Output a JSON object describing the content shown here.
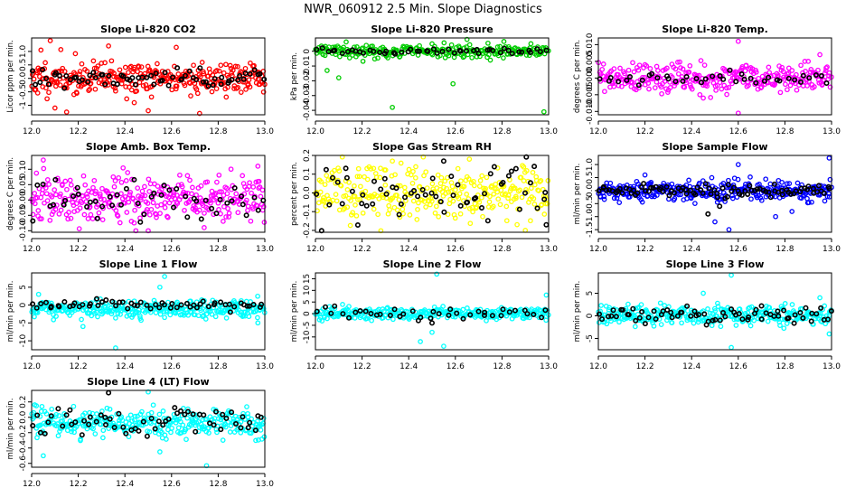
{
  "figure_title": "NWR_060912  2.5 Min. Slope Diagnostics",
  "colors": {
    "axis": "#000000",
    "background": "#ffffff",
    "flagged": "#000000"
  },
  "chart_data": [
    {
      "type": "scatter",
      "title": "Slope Li-820 CO2",
      "ylabel": "Licor ppm per min.",
      "xlim": [
        12.0,
        13.0
      ],
      "ylim": [
        -1.35,
        1.5
      ],
      "xticks": [
        "12.0",
        "12.2",
        "12.4",
        "12.6",
        "12.8",
        "13.0"
      ],
      "yticks": [
        {
          "v": -1,
          "t": "-1"
        },
        {
          "v": -0.5,
          "t": "-0.5"
        },
        {
          "v": 0,
          "t": "0.0"
        },
        {
          "v": 0.5,
          "t": "0.5"
        },
        {
          "v": 1,
          "t": "1.0"
        }
      ],
      "series": [
        {
          "name": "all",
          "color": "#ff0000",
          "count": 320,
          "seed": 11,
          "center": 0.0,
          "spread": 0.3,
          "outliers": [
            [
              12.08,
              1.4
            ],
            [
              12.1,
              -1.1
            ],
            [
              12.15,
              -1.25
            ],
            [
              12.33,
              1.2
            ],
            [
              12.5,
              -1.2
            ],
            [
              12.62,
              1.15
            ],
            [
              12.72,
              -1.3
            ],
            [
              12.04,
              1.05
            ],
            [
              12.44,
              -0.9
            ]
          ]
        },
        {
          "name": "flagged",
          "color": "#000000",
          "count": 70,
          "seed": 12,
          "center": 0.0,
          "spread": 0.2,
          "outliers": []
        }
      ]
    },
    {
      "type": "scatter",
      "title": "Slope Li-820 Pressure",
      "ylabel": "kPa per min.",
      "xlim": [
        12.0,
        13.0
      ],
      "ylim": [
        -0.043,
        0.009
      ],
      "xticks": [
        "12.0",
        "12.2",
        "12.4",
        "12.6",
        "12.8",
        "13.0"
      ],
      "yticks": [
        {
          "v": -0.04,
          "t": "-0.04"
        },
        {
          "v": -0.03,
          "t": "-0.03"
        },
        {
          "v": -0.02,
          "t": "-0.02"
        },
        {
          "v": -0.01,
          "t": "-0.01"
        },
        {
          "v": 0,
          "t": "0"
        }
      ],
      "series": [
        {
          "name": "all",
          "color": "#00cc00",
          "count": 260,
          "seed": 21,
          "center": 0.0,
          "spread": 0.0022,
          "outliers": [
            [
              12.05,
              -0.013
            ],
            [
              12.1,
              -0.018
            ],
            [
              12.33,
              -0.038
            ],
            [
              12.59,
              -0.022
            ],
            [
              12.65,
              0.008
            ],
            [
              12.98,
              -0.041
            ],
            [
              12.75,
              -0.006
            ],
            [
              12.5,
              0.005
            ]
          ]
        },
        {
          "name": "flagged",
          "color": "#000000",
          "count": 50,
          "seed": 22,
          "center": 0.0,
          "spread": 0.001,
          "outliers": []
        }
      ]
    },
    {
      "type": "scatter",
      "title": "Slope Li-820 Temp.",
      "ylabel": "degrees C per min.",
      "xlim": [
        12.0,
        13.0
      ],
      "ylim": [
        -0.011,
        0.012
      ],
      "xticks": [
        "12.0",
        "12.2",
        "12.4",
        "12.6",
        "12.8",
        "13.0"
      ],
      "yticks": [
        {
          "v": -0.01,
          "t": "-0.010"
        },
        {
          "v": -0.005,
          "t": "-0.005"
        },
        {
          "v": 0,
          "t": "0.000"
        },
        {
          "v": 0.005,
          "t": "0.005"
        },
        {
          "v": 0.01,
          "t": "0.010"
        }
      ],
      "series": [
        {
          "name": "all",
          "color": "#ff00ff",
          "count": 300,
          "seed": 31,
          "center": 0.0,
          "spread": 0.0022,
          "outliers": [
            [
              12.6,
              0.011
            ],
            [
              12.6,
              -0.0105
            ],
            [
              12.45,
              -0.006
            ],
            [
              12.9,
              0.005
            ],
            [
              12.2,
              0.004
            ],
            [
              12.95,
              0.007
            ]
          ]
        },
        {
          "name": "flagged",
          "color": "#000000",
          "count": 40,
          "seed": 32,
          "center": 0.0,
          "spread": 0.0012,
          "outliers": []
        }
      ]
    },
    {
      "type": "scatter",
      "title": "Slope Amb. Box Temp.",
      "ylabel": "degrees C per min.",
      "xlim": [
        12.0,
        13.0
      ],
      "ylim": [
        -0.105,
        0.145
      ],
      "xticks": [
        "12.0",
        "12.2",
        "12.4",
        "12.6",
        "12.8",
        "13.0"
      ],
      "yticks": [
        {
          "v": -0.1,
          "t": "-0.10"
        },
        {
          "v": -0.05,
          "t": "-0.05"
        },
        {
          "v": 0,
          "t": "0.00"
        },
        {
          "v": 0.05,
          "t": "0.05"
        },
        {
          "v": 0.1,
          "t": "0.10"
        }
      ],
      "series": [
        {
          "name": "all",
          "color": "#ff00ff",
          "count": 320,
          "seed": 41,
          "center": 0.0,
          "spread": 0.04,
          "outliers": [
            [
              12.05,
              0.13
            ],
            [
              12.5,
              -0.1
            ],
            [
              12.74,
              -0.09
            ],
            [
              12.97,
              0.11
            ]
          ]
        },
        {
          "name": "flagged",
          "color": "#000000",
          "count": 50,
          "seed": 42,
          "center": 0.0,
          "spread": 0.035,
          "outliers": []
        }
      ]
    },
    {
      "type": "scatter",
      "title": "Slope Gas Stream RH",
      "ylabel": "percent per min.",
      "xlim": [
        12.0,
        13.0
      ],
      "ylim": [
        -0.21,
        0.2
      ],
      "xticks": [
        "12.0",
        "12.2",
        "12.4",
        "12.6",
        "12.8",
        "13.0"
      ],
      "yticks": [
        {
          "v": -0.2,
          "t": "-0.2"
        },
        {
          "v": -0.1,
          "t": "-0.1"
        },
        {
          "v": 0,
          "t": "0.0"
        },
        {
          "v": 0.1,
          "t": "0.1"
        },
        {
          "v": 0.2,
          "t": "0.2"
        }
      ],
      "series": [
        {
          "name": "all",
          "color": "#ffff00",
          "count": 300,
          "seed": 51,
          "center": 0.0,
          "spread": 0.07,
          "outliers": [
            [
              12.66,
              0.18
            ],
            [
              12.9,
              -0.2
            ],
            [
              12.33,
              0.17
            ]
          ]
        },
        {
          "name": "flagged",
          "color": "#000000",
          "count": 60,
          "seed": 52,
          "center": 0.0,
          "spread": 0.08,
          "outliers": [
            [
              12.55,
              0.17
            ],
            [
              12.99,
              -0.17
            ]
          ]
        }
      ]
    },
    {
      "type": "scatter",
      "title": "Slope Sample Flow",
      "ylabel": "ml/min per min.",
      "xlim": [
        12.0,
        13.0
      ],
      "ylim": [
        -1.6,
        1.35
      ],
      "xticks": [
        "12.0",
        "12.2",
        "12.4",
        "12.6",
        "12.8",
        "13.0"
      ],
      "yticks": [
        {
          "v": -1.5,
          "t": "-1.5"
        },
        {
          "v": -1,
          "t": "-1.0"
        },
        {
          "v": -0.5,
          "t": "-0.5"
        },
        {
          "v": 0,
          "t": "0.0"
        },
        {
          "v": 0.5,
          "t": "0.5"
        },
        {
          "v": 1,
          "t": "1.0"
        }
      ],
      "series": [
        {
          "name": "all",
          "color": "#0000ff",
          "count": 320,
          "seed": 61,
          "center": 0.0,
          "spread": 0.2,
          "outliers": [
            [
              12.56,
              -1.5
            ],
            [
              12.6,
              1.0
            ],
            [
              12.99,
              1.25
            ],
            [
              12.76,
              -1.0
            ],
            [
              12.5,
              -1.2
            ],
            [
              12.2,
              0.6
            ]
          ]
        },
        {
          "name": "flagged",
          "color": "#000000",
          "count": 90,
          "seed": 62,
          "center": 0.0,
          "spread": 0.12,
          "outliers": [
            [
              12.47,
              -0.9
            ],
            [
              12.52,
              -0.6
            ]
          ]
        }
      ]
    },
    {
      "type": "scatter",
      "title": "Slope Line 1 Flow",
      "ylabel": "ml/min per min.",
      "xlim": [
        12.0,
        13.0
      ],
      "ylim": [
        -12.5,
        9.0
      ],
      "xticks": [
        "12.0",
        "12.2",
        "12.4",
        "12.6",
        "12.8",
        "13.0"
      ],
      "yticks": [
        {
          "v": -10,
          "t": "-10"
        },
        {
          "v": -5,
          "t": "-5"
        },
        {
          "v": 0,
          "t": "0"
        },
        {
          "v": 5,
          "t": "5"
        }
      ],
      "series": [
        {
          "name": "all",
          "color": "#00ffff",
          "count": 320,
          "seed": 71,
          "center": -1.0,
          "spread": 1.2,
          "outliers": [
            [
              12.36,
              -12
            ],
            [
              12.57,
              8
            ],
            [
              12.03,
              3
            ],
            [
              12.55,
              5
            ],
            [
              12.97,
              -5
            ],
            [
              12.22,
              -6
            ]
          ]
        },
        {
          "name": "flagged",
          "color": "#000000",
          "count": 60,
          "seed": 72,
          "center": 0.0,
          "spread": 0.6,
          "outliers": []
        }
      ]
    },
    {
      "type": "scatter",
      "title": "Slope Line 2 Flow",
      "ylabel": "ml/min per min.",
      "xlim": [
        12.0,
        13.0
      ],
      "ylim": [
        -15.5,
        17.5
      ],
      "xticks": [
        "12.0",
        "12.2",
        "12.4",
        "12.6",
        "12.8",
        "13.0"
      ],
      "yticks": [
        {
          "v": -10,
          "t": "-10"
        },
        {
          "v": -5,
          "t": "-5"
        },
        {
          "v": 0,
          "t": "0"
        },
        {
          "v": 5,
          "t": "5"
        },
        {
          "v": 10,
          "t": "10"
        },
        {
          "v": 15,
          "t": "15"
        }
      ],
      "series": [
        {
          "name": "all",
          "color": "#00ffff",
          "count": 300,
          "seed": 81,
          "center": 0.0,
          "spread": 1.3,
          "outliers": [
            [
              12.52,
              17
            ],
            [
              12.55,
              -14
            ],
            [
              12.45,
              -12
            ],
            [
              12.99,
              8
            ],
            [
              12.06,
              3
            ],
            [
              12.5,
              -8
            ]
          ]
        },
        {
          "name": "flagged",
          "color": "#000000",
          "count": 40,
          "seed": 82,
          "center": 0.0,
          "spread": 1.2,
          "outliers": [
            [
              12.5,
              -4
            ]
          ]
        }
      ]
    },
    {
      "type": "scatter",
      "title": "Slope Line 3 Flow",
      "ylabel": "ml/min per min.",
      "xlim": [
        12.0,
        13.0
      ],
      "ylim": [
        -7.5,
        9.5
      ],
      "xticks": [
        "12.0",
        "12.2",
        "12.4",
        "12.6",
        "12.8",
        "13.0"
      ],
      "yticks": [
        {
          "v": -5,
          "t": "-5"
        },
        {
          "v": 0,
          "t": "0"
        },
        {
          "v": 5,
          "t": "5"
        }
      ],
      "series": [
        {
          "name": "all",
          "color": "#00ffff",
          "count": 320,
          "seed": 91,
          "center": 0.0,
          "spread": 1.1,
          "outliers": [
            [
              12.57,
              9
            ],
            [
              12.57,
              -7
            ],
            [
              12.99,
              -4
            ],
            [
              12.45,
              5
            ],
            [
              12.95,
              4
            ]
          ]
        },
        {
          "name": "flagged",
          "color": "#000000",
          "count": 70,
          "seed": 92,
          "center": 0.0,
          "spread": 1.0,
          "outliers": []
        }
      ]
    },
    {
      "type": "scatter",
      "title": "Slope Line 4 (LT) Flow",
      "ylabel": "ml/min per min.",
      "xlim": [
        12.0,
        13.0
      ],
      "ylim": [
        -0.65,
        0.35
      ],
      "xticks": [
        "12.0",
        "12.2",
        "12.4",
        "12.6",
        "12.8",
        "13.0"
      ],
      "yticks": [
        {
          "v": -0.6,
          "t": "-0.6"
        },
        {
          "v": -0.4,
          "t": "-0.4"
        },
        {
          "v": -0.2,
          "t": "-0.2"
        },
        {
          "v": 0,
          "t": "0.0"
        },
        {
          "v": 0.2,
          "t": "0.2"
        }
      ],
      "series": [
        {
          "name": "all",
          "color": "#00ffff",
          "count": 320,
          "seed": 101,
          "center": -0.07,
          "spread": 0.09,
          "outliers": [
            [
              12.75,
              -0.63
            ],
            [
              12.05,
              -0.5
            ],
            [
              12.5,
              0.33
            ],
            [
              12.55,
              -0.45
            ],
            [
              12.02,
              0.15
            ]
          ]
        },
        {
          "name": "flagged",
          "color": "#000000",
          "count": 60,
          "seed": 102,
          "center": -0.06,
          "spread": 0.08,
          "outliers": [
            [
              12.33,
              0.32
            ]
          ]
        }
      ]
    }
  ]
}
